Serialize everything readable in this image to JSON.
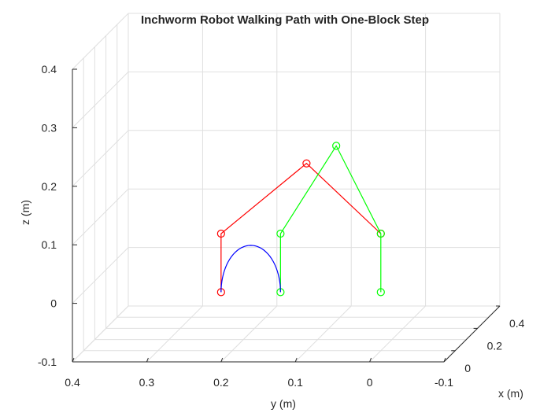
{
  "chart_data": {
    "type": "line3d",
    "title": "Inchworm Robot Walking Path with One-Block Step",
    "xlabel": "x (m)",
    "ylabel": "y (m)",
    "zlabel": "z (m)",
    "xlim": [
      -0.1,
      0.4
    ],
    "ylim": [
      -0.1,
      0.4
    ],
    "zlim": [
      -0.1,
      0.4
    ],
    "x_ticks": [
      "0",
      "0.2",
      "0.4"
    ],
    "y_ticks": [
      "0.4",
      "0.3",
      "0.2",
      "0.1",
      "0",
      "-0.1"
    ],
    "z_ticks": [
      "-0.1",
      "0",
      "0.1",
      "0.2",
      "0.3",
      "0.4"
    ],
    "grid": true,
    "series": [
      {
        "color": "#ff0000",
        "marker": "circle",
        "points": [
          {
            "y": 0.215,
            "z": 0.0
          },
          {
            "y": 0.215,
            "z": 0.1
          },
          {
            "y": 0.1,
            "z": 0.22
          },
          {
            "y": 0.0,
            "z": 0.1
          }
        ]
      },
      {
        "color": "#00ff00",
        "marker": "circle",
        "points": [
          {
            "y": 0.135,
            "z": 0.0
          },
          {
            "y": 0.135,
            "z": 0.1
          },
          {
            "y": 0.06,
            "z": 0.25
          },
          {
            "y": 0.0,
            "z": 0.1
          },
          {
            "y": 0.0,
            "z": 0.0
          }
        ]
      },
      {
        "color": "#0000ff",
        "marker": "none",
        "path": "semi-ellipse",
        "y_range": [
          0.215,
          0.135
        ],
        "z_peak": 0.08
      }
    ]
  }
}
